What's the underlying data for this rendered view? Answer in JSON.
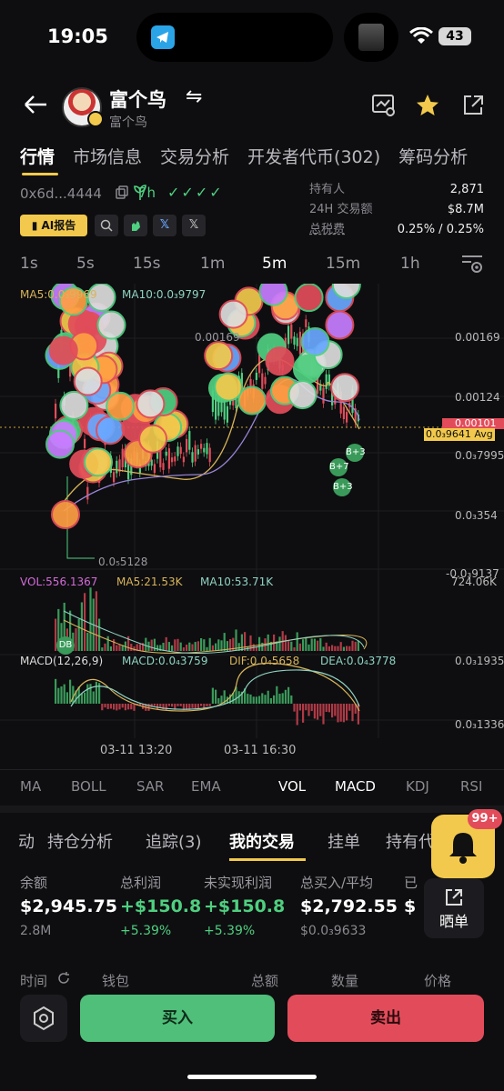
{
  "status": {
    "time": "19:05",
    "battery": "43"
  },
  "header": {
    "name": "富个鸟",
    "sub": "富个鸟"
  },
  "tabs": [
    "行情",
    "市场信息",
    "交易分析",
    "开发者代币(302)",
    "筹码分析"
  ],
  "token": {
    "address": "0x6d...4444",
    "age": "7h",
    "checks": "✓✓✓✓"
  },
  "stats": {
    "holders_label": "持有人",
    "holders_value": "2,871",
    "volume_label": "24H 交易额",
    "volume_value": "$8.7M",
    "tax_label": "总税费",
    "tax_value": "0.25% / 0.25%"
  },
  "toolbar": {
    "ai_label": "AI报告"
  },
  "intervals": [
    "1s",
    "5s",
    "15s",
    "1m",
    "5m",
    "15m",
    "1h"
  ],
  "active_interval": "5m",
  "chart_overlay": {
    "ma5": "MA5:0.0₃9969",
    "ma10": "MA10:0.0₃9797",
    "low_label": "0.0₅5128",
    "price_axis": [
      "0.00169",
      "0.00124",
      "0.00101",
      "0.0₃7995",
      "0.0₃354",
      "-0.0₃9137"
    ],
    "mid_label": "0.00169",
    "current_price_label": "0.0₃9641 Avg",
    "vol": "VOL:556.1367",
    "vol_ma5": "MA5:21.53K",
    "vol_ma10": "MA10:53.71K",
    "vol_axis": "724.06K",
    "macd": "MACD(12,26,9)",
    "macd_val": "MACD:0.0₄3759",
    "dif": "DIF:0.0₄5658",
    "dea": "DEA:0.0₄3778",
    "macd_axis_top": "0.0₃1935",
    "macd_axis_bottom": "0.0₃1336",
    "x_labels": [
      "03-11 13:20",
      "03-11 16:30"
    ],
    "buy_markers": [
      "B+3",
      "B+7",
      "B+3"
    ],
    "db_marker": "DB"
  },
  "indicators": [
    "MA",
    "BOLL",
    "SAR",
    "EMA",
    "VOL",
    "MACD",
    "KDJ",
    "RSI"
  ],
  "active_indicators": [
    "VOL",
    "MACD"
  ],
  "sections": [
    "动",
    "持仓分析",
    "追踪(3)",
    "我的交易",
    "挂单",
    "持有代"
  ],
  "bell_badge": "99+",
  "share_label": "晒单",
  "metrics": [
    {
      "label": "余额",
      "value": "$2,945.75",
      "sub": "2.8M"
    },
    {
      "label": "总利润",
      "value": "+$150.8",
      "sub": "+5.39%"
    },
    {
      "label": "未实现利润",
      "value": "+$150.8",
      "sub": "+5.39%"
    },
    {
      "label": "总买入/平均",
      "value": "$2,792.55",
      "sub": "$0.0₃9633"
    },
    {
      "label": "已",
      "value": "$",
      "sub": ""
    }
  ],
  "list_headers": [
    "时间",
    "钱包",
    "总额",
    "数量",
    "价格"
  ],
  "actions": {
    "buy": "买入",
    "sell": "卖出"
  },
  "colors": {
    "accent": "#f2c94c",
    "up": "#4fcf80",
    "down": "#e24c5a"
  }
}
